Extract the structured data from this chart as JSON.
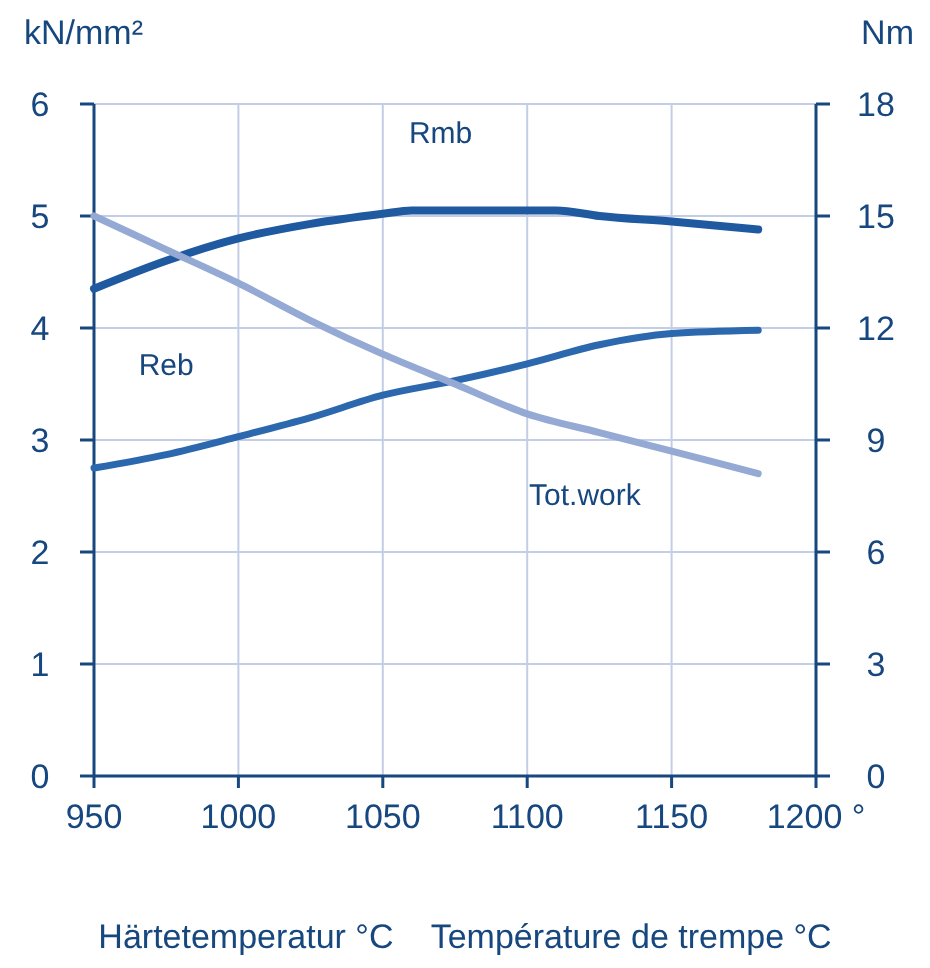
{
  "chart_data": {
    "type": "line",
    "ylabel": "kN/mm²",
    "y2label": "Nm",
    "xlabel": "Härtetemperatur °C    Température de trempe °C",
    "xlim": [
      950,
      1200
    ],
    "xticks": [
      950,
      1000,
      1050,
      1100,
      1150,
      {
        "value": 1200,
        "label": "1200 °"
      }
    ],
    "ylim": [
      0,
      6
    ],
    "yticks": [
      0,
      1,
      2,
      3,
      4,
      5,
      6
    ],
    "y2lim": [
      0,
      18
    ],
    "y2ticks": [
      0,
      3,
      6,
      9,
      12,
      15,
      18
    ],
    "grid": true,
    "line_style": "solid",
    "marker": "none",
    "series": [
      {
        "name": "Rmb",
        "color": "#1f5aa0",
        "x": [
          950,
          975,
          1000,
          1025,
          1050,
          1060,
          1080,
          1110,
          1125,
          1150,
          1180
        ],
        "values": [
          4.35,
          4.6,
          4.8,
          4.93,
          5.02,
          5.05,
          5.05,
          5.05,
          5.0,
          4.95,
          4.88
        ]
      },
      {
        "name": "Reb",
        "color": "#2c68ad",
        "x": [
          950,
          975,
          1000,
          1025,
          1050,
          1075,
          1100,
          1125,
          1150,
          1180
        ],
        "values": [
          2.75,
          2.87,
          3.03,
          3.2,
          3.4,
          3.53,
          3.68,
          3.85,
          3.95,
          3.98
        ]
      },
      {
        "name": "Tot.work",
        "color": "#94a9d3",
        "axis": "y2",
        "x": [
          950,
          975,
          1000,
          1025,
          1050,
          1075,
          1100,
          1125,
          1150,
          1180
        ],
        "values": [
          15,
          14.1,
          13.2,
          12.2,
          11.3,
          10.5,
          9.7,
          9.2,
          8.7,
          8.1
        ]
      }
    ]
  }
}
